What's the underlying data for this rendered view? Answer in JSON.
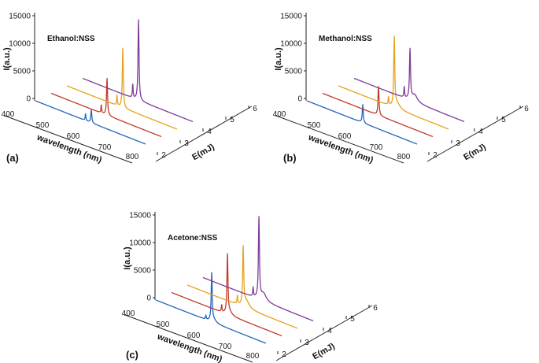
{
  "chart_data": [
    {
      "panel_label": "(a)",
      "title": "Ethanol:NSS",
      "type": "line",
      "xlabel": "wavelength (nm)",
      "ylabel": "I(a.u.)",
      "zlabel": "E(mJ)",
      "x_ticks": [
        "400",
        "500",
        "600",
        "700",
        "800"
      ],
      "y_ticks": [
        "0",
        "5000",
        "10000",
        "15000"
      ],
      "z_ticks": [
        "2",
        "3",
        "4",
        "5",
        "6"
      ],
      "xlim": [
        400,
        800
      ],
      "ylim": [
        0,
        15000
      ],
      "series": [
        {
          "name": "2 mJ",
          "energy": 2,
          "color": "#2366b8",
          "baseline": 0,
          "peaks": [
            {
              "x": 582,
              "y": 1200,
              "w": 1.5
            },
            {
              "x": 603,
              "y": 2300,
              "w": 2.2
            }
          ]
        },
        {
          "name": "3 mJ",
          "energy": 3,
          "color": "#c0392b",
          "baseline": 0,
          "peaks": [
            {
              "x": 582,
              "y": 1400,
              "w": 1.5
            },
            {
              "x": 603,
              "y": 6700,
              "w": 2.2
            }
          ]
        },
        {
          "name": "4 mJ",
          "energy": 4,
          "color": "#e6a21a",
          "baseline": 0,
          "peaks": [
            {
              "x": 582,
              "y": 1800,
              "w": 1.5
            },
            {
              "x": 603,
              "y": 10800,
              "w": 2.2
            }
          ]
        },
        {
          "name": "5 mJ",
          "energy": 5,
          "color": "#7d3c98",
          "baseline": 0,
          "peaks": [
            {
              "x": 582,
              "y": 2400,
              "w": 1.5
            },
            {
              "x": 603,
              "y": 14600,
              "w": 2.2
            }
          ]
        }
      ]
    },
    {
      "panel_label": "(b)",
      "title": "Methanol:NSS",
      "type": "line",
      "xlabel": "wavelength (nm)",
      "ylabel": "I(a.u.)",
      "zlabel": "E(mJ)",
      "x_ticks": [
        "400",
        "500",
        "600",
        "700",
        "800"
      ],
      "y_ticks": [
        "0",
        "5000",
        "10000",
        "15000"
      ],
      "z_ticks": [
        "2",
        "3",
        "4",
        "5",
        "6"
      ],
      "xlim": [
        400,
        800
      ],
      "ylim": [
        0,
        15000
      ],
      "series": [
        {
          "name": "2 mJ",
          "energy": 2,
          "color": "#2366b8",
          "baseline": 0,
          "peaks": [
            {
              "x": 603,
              "y": 3300,
              "w": 2.2
            }
          ]
        },
        {
          "name": "3 mJ",
          "energy": 3,
          "color": "#c0392b",
          "baseline": 0,
          "peaks": [
            {
              "x": 603,
              "y": 5200,
              "w": 2.2
            }
          ]
        },
        {
          "name": "4 mJ",
          "energy": 4,
          "color": "#e6a21a",
          "baseline": 0,
          "peaks": [
            {
              "x": 582,
              "y": 1400,
              "w": 1.5
            },
            {
              "x": 603,
              "y": 12500,
              "w": 2.2
            },
            {
              "x": 615,
              "y": 900,
              "w": 12
            }
          ]
        },
        {
          "name": "5 mJ",
          "energy": 5,
          "color": "#7d3c98",
          "baseline": 0,
          "peaks": [
            {
              "x": 582,
              "y": 1900,
              "w": 1.5
            },
            {
              "x": 603,
              "y": 9000,
              "w": 2.2
            },
            {
              "x": 620,
              "y": 1300,
              "w": 12
            }
          ]
        }
      ]
    },
    {
      "panel_label": "(c)",
      "title": "Acetone:NSS",
      "type": "line",
      "xlabel": "wavelength (nm)",
      "ylabel": "I(a.u.)",
      "zlabel": "E(mJ)",
      "x_ticks": [
        "400",
        "500",
        "600",
        "700",
        "800"
      ],
      "y_ticks": [
        "0",
        "5000",
        "10000",
        "15000"
      ],
      "z_ticks": [
        "2",
        "3",
        "4",
        "5",
        "6"
      ],
      "xlim": [
        400,
        800
      ],
      "ylim": [
        0,
        15000
      ],
      "series": [
        {
          "name": "2 mJ",
          "energy": 2,
          "color": "#2366b8",
          "baseline": 0,
          "peaks": [
            {
              "x": 582,
              "y": 700,
              "w": 1.5
            },
            {
              "x": 603,
              "y": 8700,
              "w": 2.2
            },
            {
              "x": 612,
              "y": 500,
              "w": 10
            }
          ]
        },
        {
          "name": "3 mJ",
          "energy": 3,
          "color": "#c0392b",
          "baseline": 0,
          "peaks": [
            {
              "x": 582,
              "y": 1200,
              "w": 1.5
            },
            {
              "x": 603,
              "y": 10700,
              "w": 2.2
            },
            {
              "x": 612,
              "y": 600,
              "w": 10
            }
          ]
        },
        {
          "name": "4 mJ",
          "energy": 4,
          "color": "#e6a21a",
          "baseline": 0,
          "peaks": [
            {
              "x": 582,
              "y": 1500,
              "w": 1.5
            },
            {
              "x": 603,
              "y": 10500,
              "w": 2.2
            },
            {
              "x": 615,
              "y": 1300,
              "w": 12
            }
          ]
        },
        {
          "name": "5 mJ",
          "energy": 5,
          "color": "#7d3c98",
          "baseline": 0,
          "peaks": [
            {
              "x": 582,
              "y": 1600,
              "w": 1.5
            },
            {
              "x": 603,
              "y": 14600,
              "w": 2.2
            },
            {
              "x": 620,
              "y": 1400,
              "w": 12
            }
          ]
        }
      ]
    }
  ]
}
